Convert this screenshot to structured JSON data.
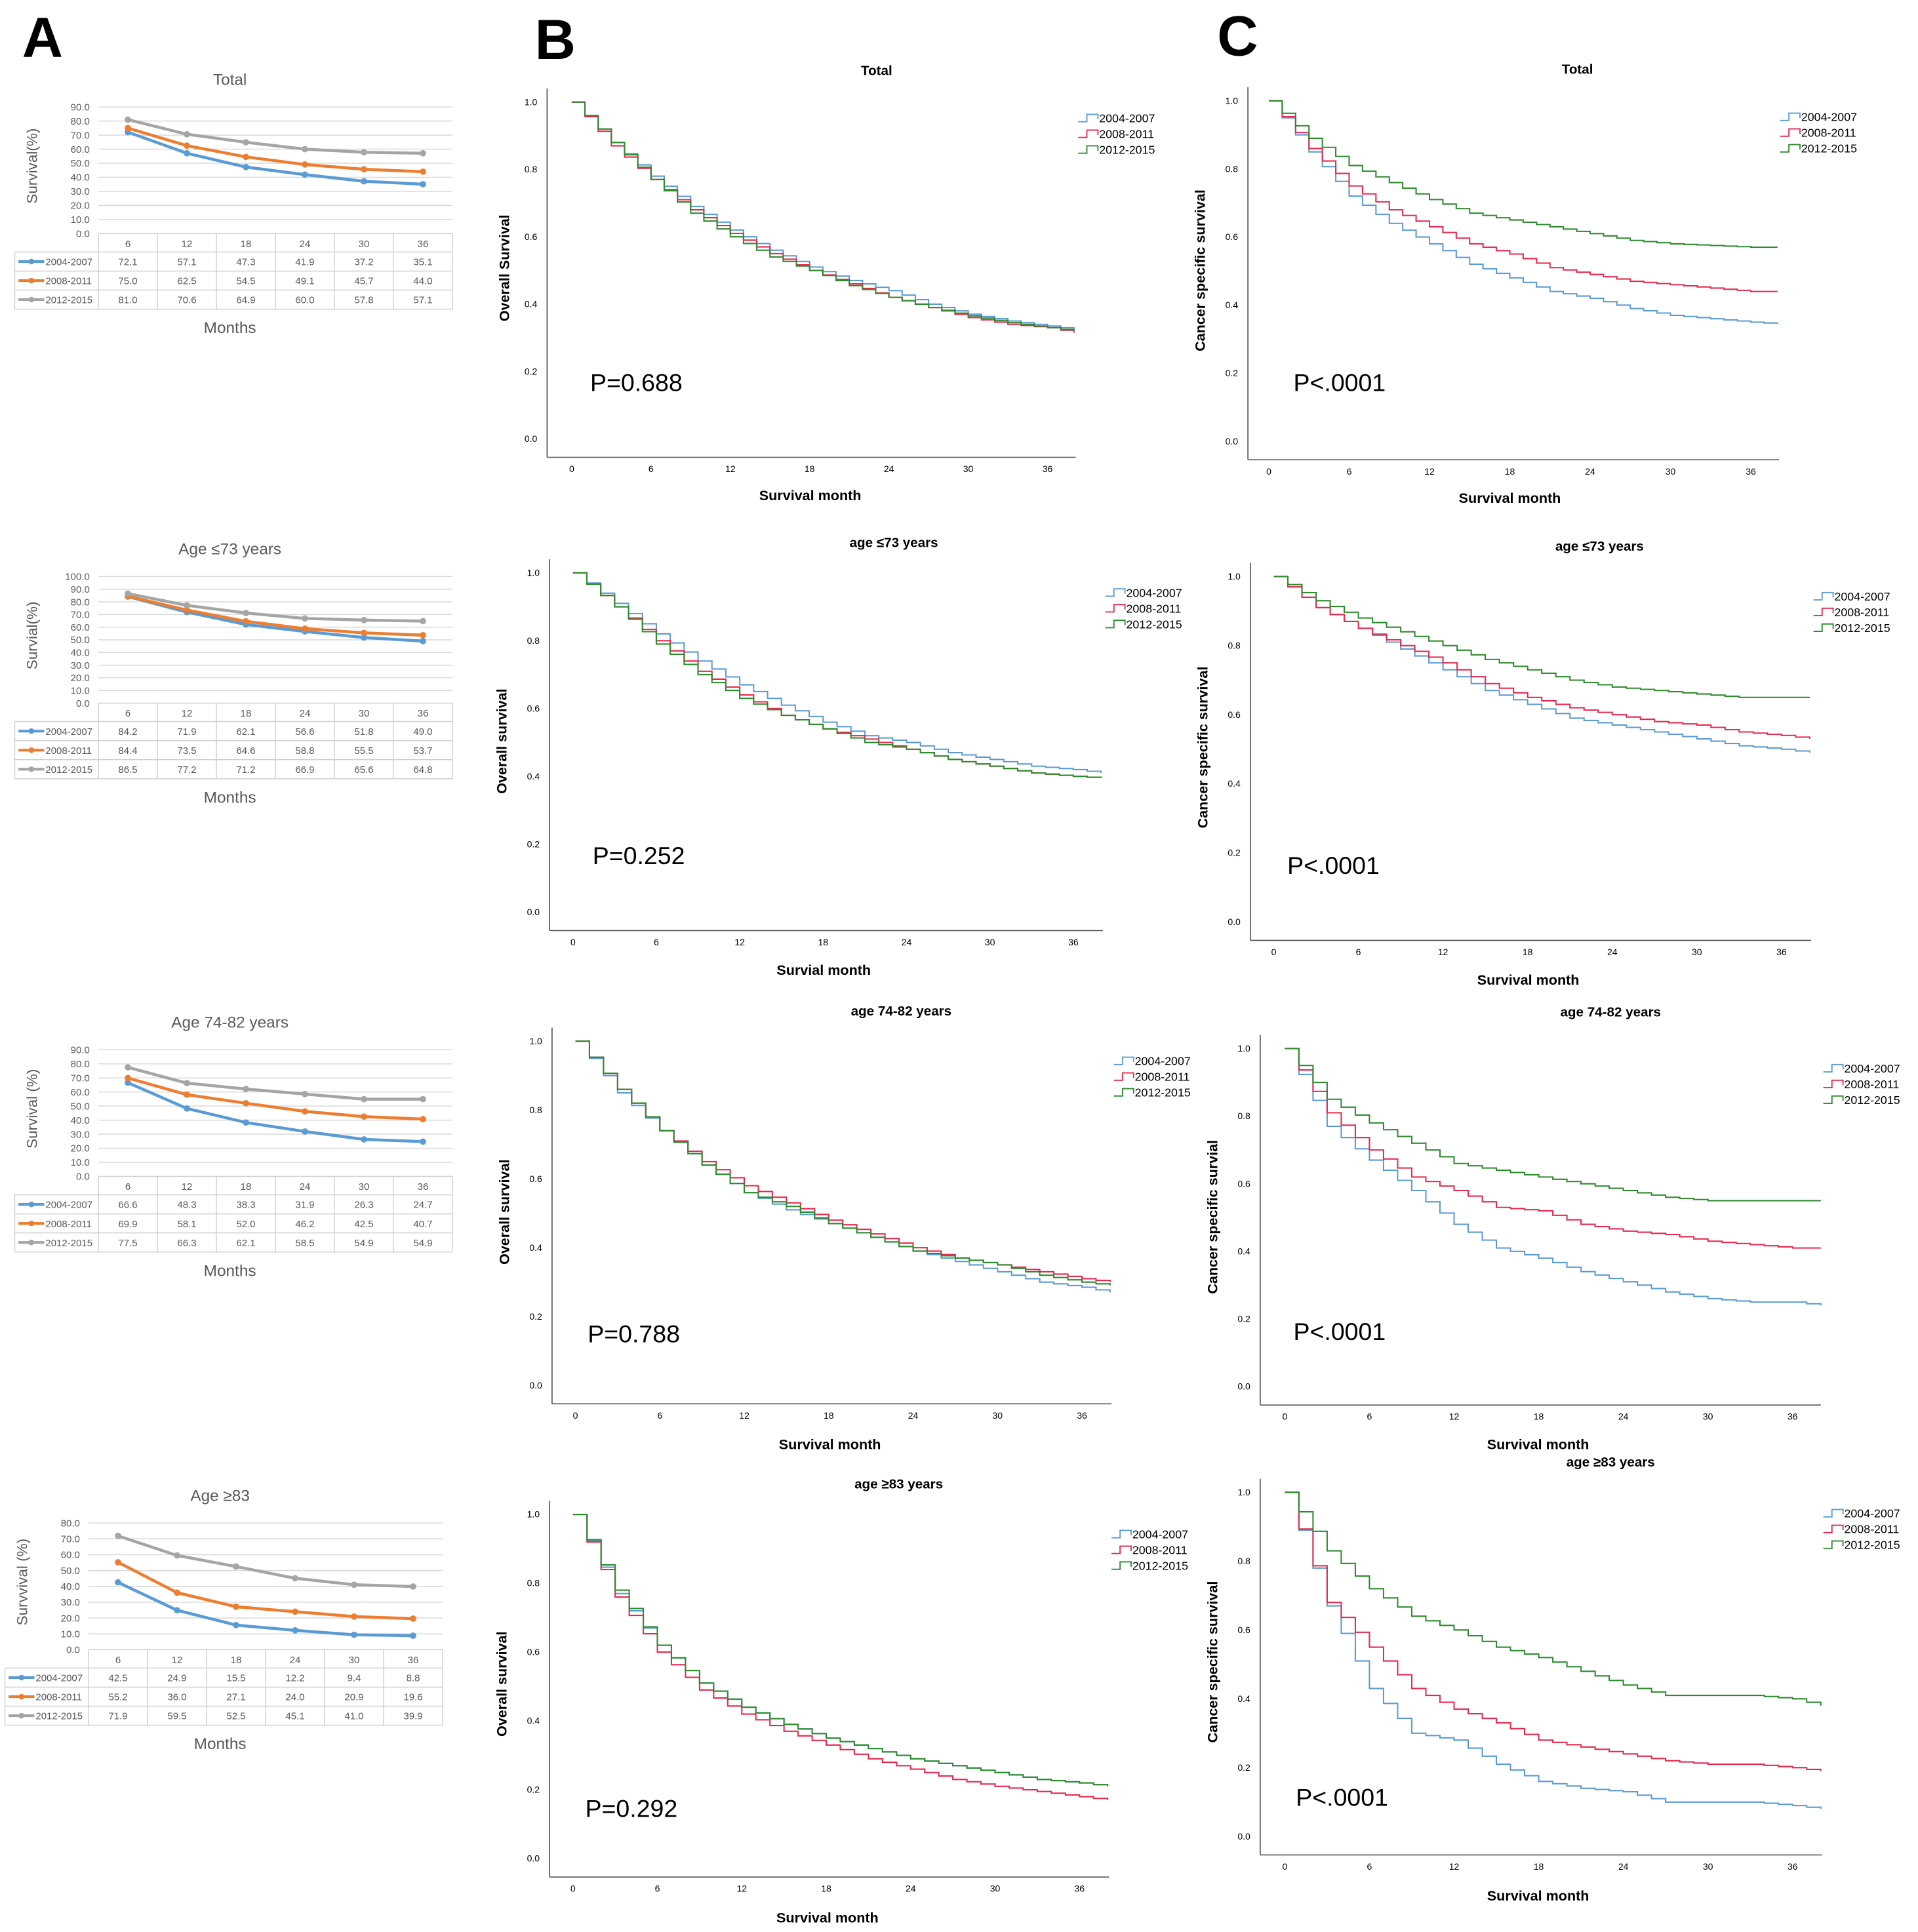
{
  "panel_labels": [
    "A",
    "B",
    "C"
  ],
  "colors": {
    "a_2004_2007": "#5b9bd5",
    "a_2008_2011": "#ed7d31",
    "a_2012_2015": "#a5a5a5",
    "km_2004_2007": "#5b9bd5",
    "km_2008_2011": "#e8294f",
    "km_2012_2015": "#2e8b2e"
  },
  "chart_data": [
    {
      "panel": "A",
      "type": "line",
      "title": "Total",
      "ylabel": "Survival(%)",
      "xlabel": "Months",
      "ylim": [
        0,
        90
      ],
      "yticks": [
        "0.0",
        "10.0",
        "20.0",
        "30.0",
        "40.0",
        "50.0",
        "60.0",
        "70.0",
        "80.0",
        "90.0"
      ],
      "grid": true,
      "legend": "table-left",
      "categories": [
        "6",
        "12",
        "18",
        "24",
        "30",
        "36"
      ],
      "series": [
        {
          "name": "2004-2007",
          "values": [
            "72.1",
            "57.1",
            "47.3",
            "41.9",
            "37.2",
            "35.1"
          ]
        },
        {
          "name": "2008-2011",
          "values": [
            "75.0",
            "62.5",
            "54.5",
            "49.1",
            "45.7",
            "44.0"
          ]
        },
        {
          "name": "2012-2015",
          "values": [
            "81.0",
            "70.6",
            "64.9",
            "60.0",
            "57.8",
            "57.1"
          ]
        }
      ]
    },
    {
      "panel": "A",
      "type": "line",
      "title": "Age ≤73 years",
      "ylabel": "Survial(%)",
      "xlabel": "Months",
      "ylim": [
        0,
        100
      ],
      "yticks": [
        "0.0",
        "10.0",
        "20.0",
        "30.0",
        "40.0",
        "50.0",
        "60.0",
        "70.0",
        "80.0",
        "90.0",
        "100.0"
      ],
      "grid": true,
      "legend": "table-left",
      "categories": [
        "6",
        "12",
        "18",
        "24",
        "30",
        "36"
      ],
      "series": [
        {
          "name": "2004-2007",
          "values": [
            "84.2",
            "71.9",
            "62.1",
            "56.6",
            "51.8",
            "49.0"
          ]
        },
        {
          "name": "2008-2011",
          "values": [
            "84.4",
            "73.5",
            "64.6",
            "58.8",
            "55.5",
            "53.7"
          ]
        },
        {
          "name": "2012-2015",
          "values": [
            "86.5",
            "77.2",
            "71.2",
            "66.9",
            "65.6",
            "64.8"
          ]
        }
      ]
    },
    {
      "panel": "A",
      "type": "line",
      "title": "Age 74-82 years",
      "ylabel": "Survival (%)",
      "xlabel": "Months",
      "ylim": [
        0,
        90
      ],
      "yticks": [
        "0.0",
        "10.0",
        "20.0",
        "30.0",
        "40.0",
        "50.0",
        "60.0",
        "70.0",
        "80.0",
        "90.0"
      ],
      "grid": true,
      "legend": "table-left",
      "categories": [
        "6",
        "12",
        "18",
        "24",
        "30",
        "36"
      ],
      "series": [
        {
          "name": "2004-2007",
          "values": [
            "66.6",
            "48.3",
            "38.3",
            "31.9",
            "26.3",
            "24.7"
          ]
        },
        {
          "name": "2008-2011",
          "values": [
            "69.9",
            "58.1",
            "52.0",
            "46.2",
            "42.5",
            "40.7"
          ]
        },
        {
          "name": "2012-2015",
          "values": [
            "77.5",
            "66.3",
            "62.1",
            "58.5",
            "54.9",
            "54.9"
          ]
        }
      ]
    },
    {
      "panel": "A",
      "type": "line",
      "title": "Age ≥83",
      "ylabel": "Survvival (%)",
      "xlabel": "Months",
      "ylim": [
        0,
        80
      ],
      "yticks": [
        "0.0",
        "10.0",
        "20.0",
        "30.0",
        "40.0",
        "50.0",
        "60.0",
        "70.0",
        "80.0"
      ],
      "grid": true,
      "legend": "table-left",
      "categories": [
        "6",
        "12",
        "18",
        "24",
        "30",
        "36"
      ],
      "series": [
        {
          "name": "2004-2007",
          "values": [
            "42.5",
            "24.9",
            "15.5",
            "12.2",
            "9.4",
            "8.8"
          ]
        },
        {
          "name": "2008-2011",
          "values": [
            "55.2",
            "36.0",
            "27.1",
            "24.0",
            "20.9",
            "19.6"
          ]
        },
        {
          "name": "2012-2015",
          "values": [
            "71.9",
            "59.5",
            "52.5",
            "45.1",
            "41.0",
            "39.9"
          ]
        }
      ]
    },
    {
      "panel": "B",
      "type": "line",
      "title": "Total",
      "ylabel": "Overall Survival",
      "xlabel": "Survival month",
      "pvalue": "P=0.688",
      "yticks": [
        "0.0",
        "0.2",
        "0.4",
        "0.6",
        "0.8",
        "1.0"
      ],
      "xticks": [
        "0",
        "6",
        "12",
        "18",
        "24",
        "30",
        "36"
      ],
      "ylim": [
        0,
        1
      ],
      "xlim": [
        0,
        38
      ],
      "grid": false,
      "legend": "top-right",
      "x": [
        0,
        3,
        6,
        9,
        12,
        15,
        18,
        21,
        24,
        27,
        30,
        33,
        36,
        38
      ],
      "series": [
        {
          "name": "2004-2007",
          "y": [
            1,
            0.88,
            0.78,
            0.69,
            0.62,
            0.56,
            0.51,
            0.47,
            0.44,
            0.4,
            0.37,
            0.35,
            0.335,
            0.325
          ]
        },
        {
          "name": "2008-2011",
          "y": [
            1,
            0.87,
            0.77,
            0.68,
            0.61,
            0.55,
            0.5,
            0.46,
            0.42,
            0.39,
            0.36,
            0.34,
            0.33,
            0.315
          ]
        },
        {
          "name": "2012-2015",
          "y": [
            1,
            0.88,
            0.77,
            0.67,
            0.6,
            0.54,
            0.5,
            0.455,
            0.42,
            0.39,
            0.365,
            0.345,
            0.33,
            0.32
          ]
        }
      ]
    },
    {
      "panel": "B",
      "type": "line",
      "title": "age ≤73 years",
      "ylabel": "Overall survival",
      "xlabel": "Survial month",
      "pvalue": "P=0.252",
      "yticks": [
        "0.0",
        "0.2",
        "0.4",
        "0.6",
        "0.8",
        "1.0"
      ],
      "xticks": [
        "0",
        "6",
        "12",
        "18",
        "24",
        "30",
        "36"
      ],
      "ylim": [
        0,
        1
      ],
      "xlim": [
        0,
        38
      ],
      "grid": false,
      "legend": "top-right",
      "x": [
        0,
        3,
        6,
        9,
        12,
        15,
        18,
        21,
        24,
        27,
        30,
        33,
        36,
        38
      ],
      "series": [
        {
          "name": "2004-2007",
          "y": [
            1,
            0.91,
            0.82,
            0.74,
            0.67,
            0.61,
            0.56,
            0.52,
            0.5,
            0.47,
            0.45,
            0.43,
            0.42,
            0.41
          ]
        },
        {
          "name": "2008-2011",
          "y": [
            1,
            0.9,
            0.8,
            0.71,
            0.64,
            0.58,
            0.54,
            0.51,
            0.48,
            0.45,
            0.43,
            0.41,
            0.4,
            0.395
          ]
        },
        {
          "name": "2012-2015",
          "y": [
            1,
            0.9,
            0.79,
            0.7,
            0.63,
            0.58,
            0.54,
            0.5,
            0.48,
            0.45,
            0.43,
            0.41,
            0.4,
            0.395
          ]
        }
      ]
    },
    {
      "panel": "B",
      "type": "line",
      "title": "age 74-82 years",
      "ylabel": "Overall survival",
      "xlabel": "Survival month",
      "pvalue": "P=0.788",
      "yticks": [
        "0.0",
        "0.2",
        "0.4",
        "0.6",
        "0.8",
        "1.0"
      ],
      "xticks": [
        "0",
        "6",
        "12",
        "18",
        "24",
        "30",
        "36"
      ],
      "ylim": [
        0,
        1
      ],
      "xlim": [
        0,
        38
      ],
      "grid": false,
      "legend": "top-right",
      "x": [
        0,
        3,
        6,
        9,
        12,
        15,
        18,
        21,
        24,
        27,
        30,
        33,
        36,
        38
      ],
      "series": [
        {
          "name": "2004-2007",
          "y": [
            1,
            0.85,
            0.74,
            0.64,
            0.56,
            0.51,
            0.47,
            0.43,
            0.39,
            0.36,
            0.33,
            0.3,
            0.285,
            0.27
          ]
        },
        {
          "name": "2008-2011",
          "y": [
            1,
            0.86,
            0.74,
            0.65,
            0.58,
            0.53,
            0.48,
            0.44,
            0.4,
            0.37,
            0.35,
            0.33,
            0.31,
            0.3
          ]
        },
        {
          "name": "2012-2015",
          "y": [
            1,
            0.86,
            0.74,
            0.64,
            0.56,
            0.52,
            0.47,
            0.43,
            0.39,
            0.37,
            0.35,
            0.32,
            0.3,
            0.29
          ]
        }
      ]
    },
    {
      "panel": "B",
      "type": "line",
      "title": "age ≥83 years",
      "ylabel": "Overall survival",
      "xlabel": "Survival month",
      "pvalue": "P=0.292",
      "yticks": [
        "0.0",
        "0.2",
        "0.4",
        "0.6",
        "0.8",
        "1.0"
      ],
      "xticks": [
        "0",
        "6",
        "12",
        "18",
        "24",
        "30",
        "36"
      ],
      "ylim": [
        0,
        1
      ],
      "xlim": [
        0,
        38
      ],
      "grid": false,
      "legend": "top-right",
      "x": [
        0,
        3,
        6,
        9,
        12,
        15,
        18,
        21,
        24,
        27,
        30,
        33,
        36,
        38
      ],
      "series": [
        {
          "name": "2004-2007",
          "y": [
            1,
            0.77,
            0.62,
            0.51,
            0.44,
            0.39,
            0.35,
            0.32,
            0.29,
            0.27,
            0.25,
            0.23,
            0.22,
            0.21
          ]
        },
        {
          "name": "2008-2011",
          "y": [
            1,
            0.76,
            0.6,
            0.49,
            0.42,
            0.37,
            0.33,
            0.29,
            0.26,
            0.23,
            0.21,
            0.195,
            0.18,
            0.17
          ]
        },
        {
          "name": "2012-2015",
          "y": [
            1,
            0.78,
            0.62,
            0.51,
            0.44,
            0.39,
            0.35,
            0.32,
            0.29,
            0.27,
            0.25,
            0.23,
            0.22,
            0.21
          ]
        }
      ]
    },
    {
      "panel": "C",
      "type": "line",
      "title": "Total",
      "ylabel": "Cancer specific survival",
      "xlabel": "Survival month",
      "pvalue": "P<.0001",
      "yticks": [
        "0.0",
        "0.2",
        "0.4",
        "0.6",
        "0.8",
        "1.0"
      ],
      "xticks": [
        "0",
        "6",
        "12",
        "18",
        "24",
        "30",
        "36"
      ],
      "ylim": [
        0,
        1
      ],
      "xlim": [
        0,
        38
      ],
      "grid": false,
      "legend": "top-right",
      "x": [
        0,
        3,
        6,
        9,
        12,
        15,
        18,
        21,
        24,
        27,
        30,
        33,
        36,
        38
      ],
      "series": [
        {
          "name": "2004-2007",
          "y": [
            1,
            0.85,
            0.72,
            0.64,
            0.58,
            0.52,
            0.48,
            0.44,
            0.42,
            0.39,
            0.37,
            0.36,
            0.35,
            0.345
          ]
        },
        {
          "name": "2008-2011",
          "y": [
            1,
            0.86,
            0.75,
            0.68,
            0.63,
            0.58,
            0.55,
            0.51,
            0.49,
            0.47,
            0.46,
            0.45,
            0.44,
            0.44
          ]
        },
        {
          "name": "2012-2015",
          "y": [
            1,
            0.89,
            0.81,
            0.76,
            0.71,
            0.67,
            0.65,
            0.63,
            0.61,
            0.59,
            0.58,
            0.575,
            0.57,
            0.57
          ]
        }
      ]
    },
    {
      "panel": "C",
      "type": "line",
      "title": "age ≤73 years",
      "ylabel": "Cancer specific survival",
      "xlabel": "Survival month",
      "pvalue": "P<.0001",
      "yticks": [
        "0.0",
        "0.2",
        "0.4",
        "0.6",
        "0.8",
        "1.0"
      ],
      "xticks": [
        "0",
        "6",
        "12",
        "18",
        "24",
        "30",
        "36"
      ],
      "ylim": [
        0,
        1
      ],
      "xlim": [
        0,
        38
      ],
      "grid": false,
      "legend": "top-right",
      "x": [
        0,
        3,
        6,
        9,
        12,
        15,
        18,
        21,
        24,
        27,
        30,
        33,
        36,
        38
      ],
      "series": [
        {
          "name": "2004-2007",
          "y": [
            1,
            0.91,
            0.85,
            0.79,
            0.73,
            0.67,
            0.63,
            0.59,
            0.57,
            0.55,
            0.53,
            0.51,
            0.5,
            0.49
          ]
        },
        {
          "name": "2008-2011",
          "y": [
            1,
            0.91,
            0.85,
            0.8,
            0.75,
            0.69,
            0.65,
            0.62,
            0.6,
            0.58,
            0.57,
            0.55,
            0.54,
            0.53
          ]
        },
        {
          "name": "2012-2015",
          "y": [
            1,
            0.93,
            0.88,
            0.84,
            0.8,
            0.76,
            0.73,
            0.7,
            0.68,
            0.67,
            0.66,
            0.65,
            0.65,
            0.65
          ]
        }
      ]
    },
    {
      "panel": "C",
      "type": "line",
      "title": "age 74-82 years",
      "ylabel": "Cancer specific survial",
      "xlabel": "Survival month",
      "pvalue": "P<.0001",
      "yticks": [
        "0.0",
        "0.2",
        "0.4",
        "0.6",
        "0.8",
        "1.0"
      ],
      "xticks": [
        "0",
        "6",
        "12",
        "18",
        "24",
        "30",
        "36"
      ],
      "ylim": [
        0,
        1
      ],
      "xlim": [
        0,
        38
      ],
      "grid": false,
      "legend": "top-right",
      "x": [
        0,
        3,
        6,
        9,
        12,
        15,
        18,
        21,
        24,
        27,
        30,
        33,
        36,
        38
      ],
      "series": [
        {
          "name": "2004-2007",
          "y": [
            1,
            0.77,
            0.67,
            0.58,
            0.48,
            0.41,
            0.38,
            0.34,
            0.31,
            0.28,
            0.26,
            0.25,
            0.25,
            0.24
          ]
        },
        {
          "name": "2008-2011",
          "y": [
            1,
            0.81,
            0.7,
            0.62,
            0.58,
            0.53,
            0.52,
            0.48,
            0.46,
            0.45,
            0.43,
            0.42,
            0.41,
            0.41
          ]
        },
        {
          "name": "2012-2015",
          "y": [
            1,
            0.85,
            0.78,
            0.72,
            0.66,
            0.64,
            0.62,
            0.6,
            0.58,
            0.56,
            0.55,
            0.55,
            0.55,
            0.55
          ]
        }
      ]
    },
    {
      "panel": "C",
      "type": "line",
      "title": "age ≥83 years",
      "ylabel": "Cancer specific survival",
      "xlabel": "Survival month",
      "pvalue": "P<.0001",
      "yticks": [
        "0.0",
        "0.2",
        "0.4",
        "0.6",
        "0.8",
        "1.0"
      ],
      "xticks": [
        "0",
        "6",
        "12",
        "18",
        "24",
        "30",
        "36"
      ],
      "ylim": [
        0,
        1
      ],
      "xlim": [
        0,
        38
      ],
      "grid": false,
      "legend": "top-right",
      "x": [
        0,
        3,
        6,
        9,
        12,
        15,
        18,
        21,
        24,
        27,
        30,
        33,
        36,
        38
      ],
      "series": [
        {
          "name": "2004-2007",
          "y": [
            1,
            0.67,
            0.43,
            0.3,
            0.28,
            0.21,
            0.16,
            0.14,
            0.13,
            0.1,
            0.1,
            0.1,
            0.09,
            0.08
          ]
        },
        {
          "name": "2008-2011",
          "y": [
            1,
            0.68,
            0.55,
            0.43,
            0.37,
            0.33,
            0.28,
            0.26,
            0.24,
            0.22,
            0.21,
            0.21,
            0.2,
            0.19
          ]
        },
        {
          "name": "2012-2015",
          "y": [
            1,
            0.83,
            0.72,
            0.64,
            0.6,
            0.55,
            0.52,
            0.48,
            0.44,
            0.41,
            0.41,
            0.41,
            0.4,
            0.38
          ]
        }
      ]
    }
  ]
}
